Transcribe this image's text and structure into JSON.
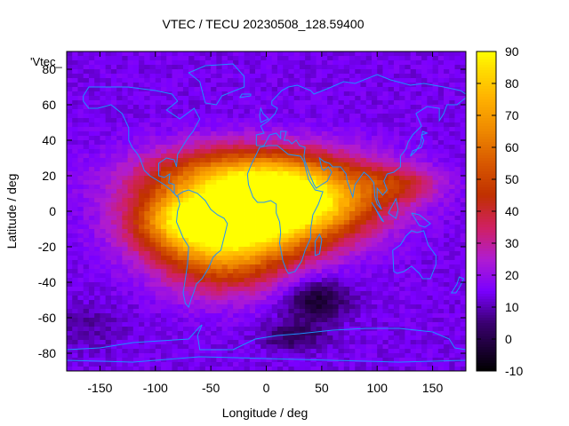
{
  "chart_data": {
    "type": "heatmap",
    "title": "VTEC / TECU 20230508_128.59400",
    "xlabel": "Longitude / deg",
    "ylabel": "Latitude / deg",
    "xlim": [
      -180,
      180
    ],
    "ylim": [
      -90,
      90
    ],
    "xticks": [
      {
        "value": -150,
        "label": "-150"
      },
      {
        "value": -100,
        "label": "-100"
      },
      {
        "value": -50,
        "label": "-50"
      },
      {
        "value": 0,
        "label": "0"
      },
      {
        "value": 50,
        "label": "50"
      },
      {
        "value": 100,
        "label": "100"
      },
      {
        "value": 150,
        "label": "150"
      }
    ],
    "yticks": [
      {
        "value": -80,
        "label": "-80"
      },
      {
        "value": -60,
        "label": "-60"
      },
      {
        "value": -40,
        "label": "-40"
      },
      {
        "value": -20,
        "label": "-20"
      },
      {
        "value": 0,
        "label": "0"
      },
      {
        "value": 20,
        "label": "20"
      },
      {
        "value": 40,
        "label": "40"
      },
      {
        "value": 60,
        "label": "60"
      },
      {
        "value": 80,
        "label": "80"
      }
    ],
    "colorbar": {
      "min": -10,
      "max": 90,
      "ticks": [
        {
          "value": 90,
          "label": "90"
        },
        {
          "value": 80,
          "label": "80"
        },
        {
          "value": 70,
          "label": "70"
        },
        {
          "value": 60,
          "label": "60"
        },
        {
          "value": 50,
          "label": "50"
        },
        {
          "value": 40,
          "label": "40"
        },
        {
          "value": 30,
          "label": "30"
        },
        {
          "value": 20,
          "label": "20"
        },
        {
          "value": 10,
          "label": "10"
        },
        {
          "value": 0,
          "label": "0"
        },
        {
          "value": -10,
          "label": "-10"
        }
      ]
    },
    "legend_label": "'Vtec_",
    "grid": false,
    "background_level": 14,
    "features": [
      {
        "name": "equatorial anomaly north crest",
        "lon": -10,
        "lat": 17,
        "sigma_lon": 65,
        "sigma_lat": 13,
        "value": 68
      },
      {
        "name": "equatorial anomaly south crest",
        "lon": -25,
        "lat": -10,
        "sigma_lon": 55,
        "sigma_lat": 14,
        "value": 62
      },
      {
        "name": "south atlantic enhancement",
        "lon": -40,
        "lat": -30,
        "sigma_lon": 40,
        "sigma_lat": 14,
        "value": 28
      },
      {
        "name": "africa equatorial",
        "lon": 40,
        "lat": 2,
        "sigma_lon": 45,
        "sigma_lat": 12,
        "value": 40
      },
      {
        "name": "south america crest",
        "lon": -75,
        "lat": -5,
        "sigma_lon": 30,
        "sigma_lat": 10,
        "value": 34
      },
      {
        "name": "asia east patch",
        "lon": 120,
        "lat": 15,
        "sigma_lon": 25,
        "sigma_lat": 7,
        "value": 20
      },
      {
        "name": "south indian ocean low",
        "lon": 45,
        "lat": -50,
        "sigma_lon": 20,
        "sigma_lat": 8,
        "value": -18
      },
      {
        "name": "antarctic low",
        "lon": 25,
        "lat": -70,
        "sigma_lon": 20,
        "sigma_lat": 6,
        "value": -12
      },
      {
        "name": "south pacific low",
        "lon": -160,
        "lat": -65,
        "sigma_lon": 25,
        "sigma_lat": 10,
        "value": -5
      }
    ],
    "palette": [
      {
        "value": -10,
        "color": "#000000"
      },
      {
        "value": 5,
        "color": "#3a0070"
      },
      {
        "value": 15,
        "color": "#7a00ff"
      },
      {
        "value": 25,
        "color": "#b01cd0"
      },
      {
        "value": 35,
        "color": "#d02060"
      },
      {
        "value": 45,
        "color": "#c03000"
      },
      {
        "value": 55,
        "color": "#d85800"
      },
      {
        "value": 65,
        "color": "#ee8800"
      },
      {
        "value": 75,
        "color": "#ffb000"
      },
      {
        "value": 85,
        "color": "#ffe000"
      },
      {
        "value": 90,
        "color": "#ffff00"
      }
    ],
    "coastline_color": "#1e90ff"
  }
}
